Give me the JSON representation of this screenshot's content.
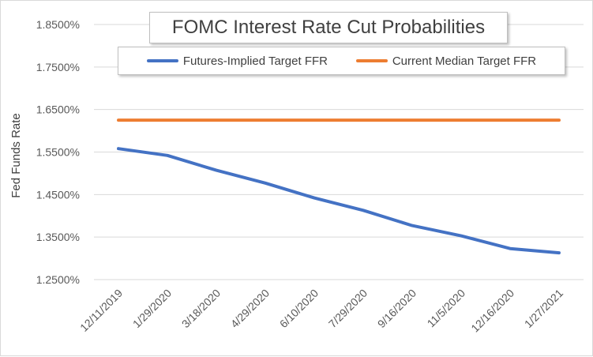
{
  "chart_data": {
    "type": "line",
    "title": "FOMC Interest Rate Cut Probabilities",
    "ylabel": "Fed Funds Rate",
    "xlabel": "",
    "ylim": [
      1.25,
      1.85
    ],
    "yticks": [
      1.25,
      1.35,
      1.45,
      1.55,
      1.65,
      1.75,
      1.85
    ],
    "ytick_labels": [
      "1.2500%",
      "1.3500%",
      "1.4500%",
      "1.5500%",
      "1.6500%",
      "1.7500%",
      "1.8500%"
    ],
    "x": [
      "12/11/2019",
      "1/29/2020",
      "3/18/2020",
      "4/29/2020",
      "6/10/2020",
      "7/29/2020",
      "9/16/2020",
      "11/5/2020",
      "12/16/2020",
      "1/27/2021"
    ],
    "grid": "y",
    "legend_position": "top",
    "series": [
      {
        "name": "Futures-Implied Target FFR",
        "color": "#4472c4",
        "values": [
          1.558,
          1.542,
          1.507,
          1.477,
          1.442,
          1.413,
          1.377,
          1.353,
          1.323,
          1.313
        ]
      },
      {
        "name": "Current Median Target FFR",
        "color": "#ed7d31",
        "values": [
          1.625,
          1.625,
          1.625,
          1.625,
          1.625,
          1.625,
          1.625,
          1.625,
          1.625,
          1.625
        ]
      }
    ]
  }
}
